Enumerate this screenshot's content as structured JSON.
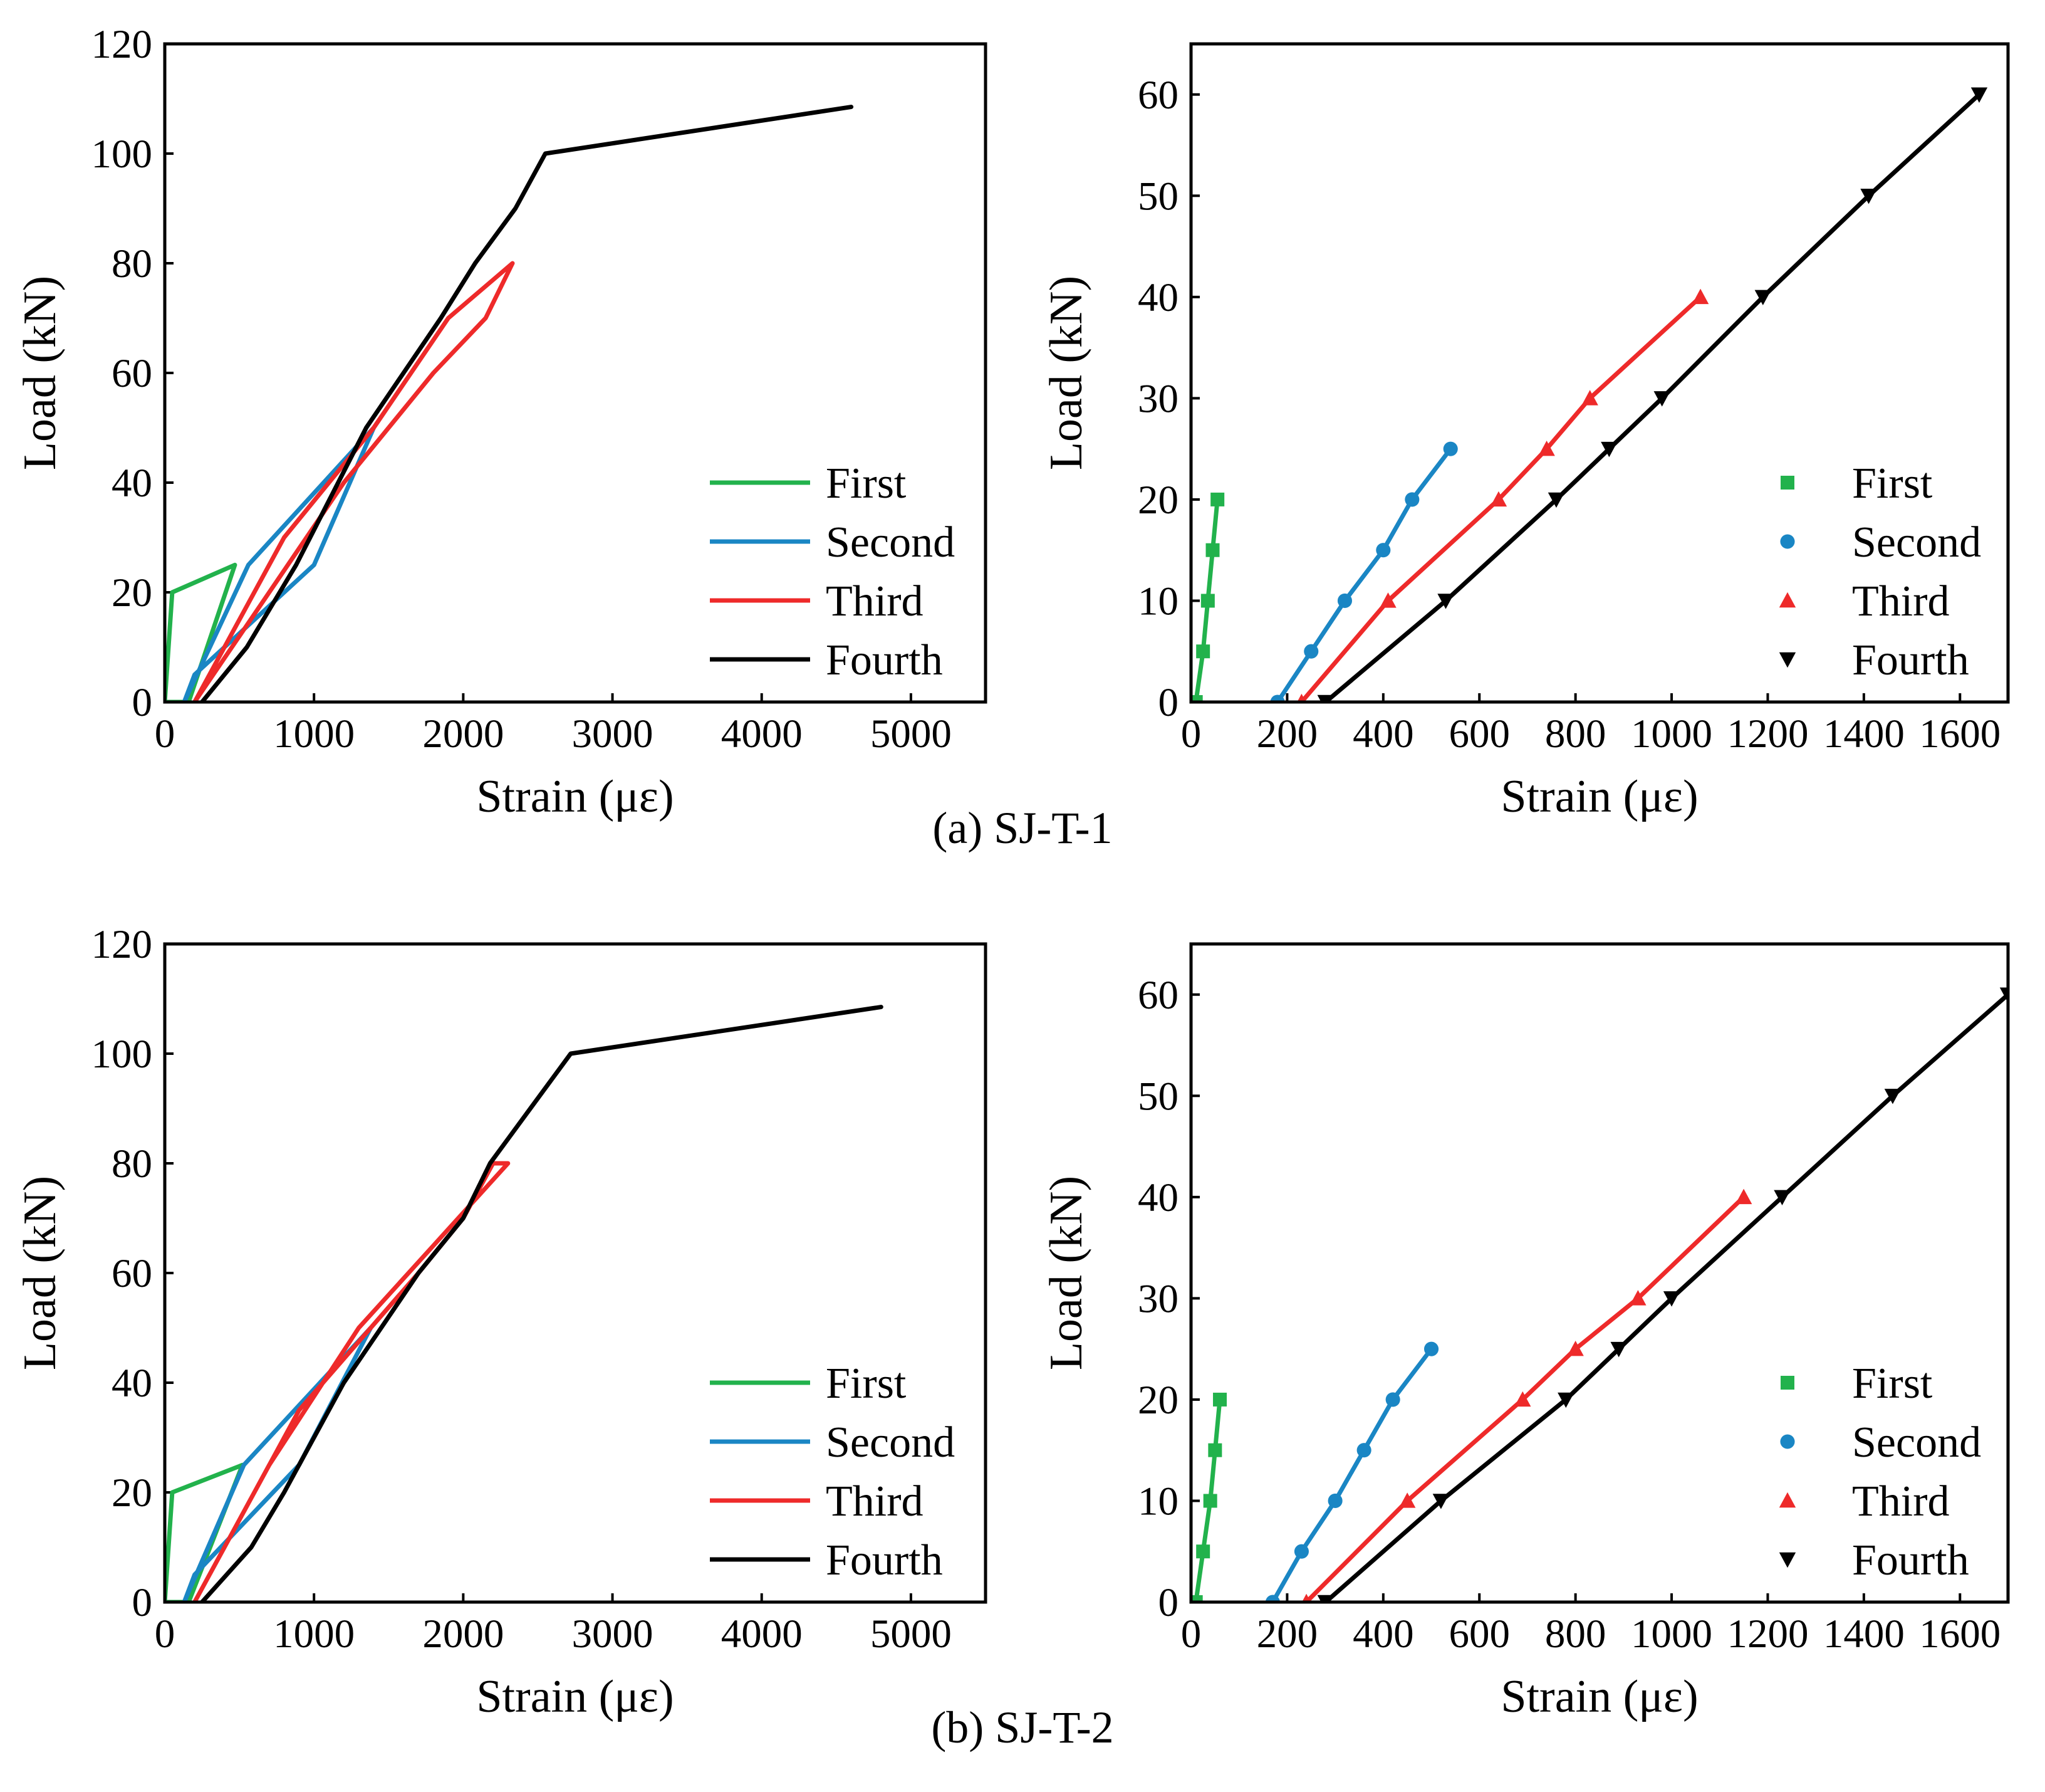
{
  "figure": {
    "caption_a": "(a) SJ-T-1",
    "caption_b": "(b) SJ-T-2"
  },
  "colors": {
    "First": "#22b24c",
    "Second": "#1a86c4",
    "Third": "#ee2a2a",
    "Fourth": "#000000"
  },
  "chart_data": [
    {
      "id": "a-left",
      "type": "line",
      "xlabel": "Strain (με)",
      "ylabel": "Load (kN)",
      "xlim": [
        0,
        5500
      ],
      "ylim": [
        0,
        120
      ],
      "xticks": [
        0,
        1000,
        2000,
        3000,
        4000,
        5000
      ],
      "yticks": [
        0,
        20,
        40,
        60,
        80,
        100,
        120
      ],
      "legend": "bottom-right",
      "series": [
        {
          "name": "First",
          "x": [
            0,
            50,
            470,
            160,
            0
          ],
          "y": [
            0,
            20,
            25,
            0,
            0
          ]
        },
        {
          "name": "Second",
          "x": [
            130,
            560,
            1400,
            1000,
            200,
            130
          ],
          "y": [
            0,
            25,
            50,
            25,
            5,
            0
          ]
        },
        {
          "name": "Third",
          "x": [
            200,
            1200,
            1800,
            2150,
            2330,
            1900,
            1400,
            800,
            200
          ],
          "y": [
            0,
            40,
            60,
            70,
            80,
            70,
            50,
            30,
            0
          ]
        },
        {
          "name": "Fourth",
          "x": [
            250,
            550,
            880,
            1350,
            1850,
            2080,
            2350,
            2550,
            4600
          ],
          "y": [
            0,
            10,
            25,
            50,
            70,
            80,
            90,
            100,
            108.5
          ]
        }
      ]
    },
    {
      "id": "a-right",
      "type": "scatter",
      "xlabel": "Strain (με)",
      "ylabel": "Load (kN)",
      "xlim": [
        0,
        1700
      ],
      "ylim": [
        0,
        65
      ],
      "xticks": [
        0,
        200,
        400,
        600,
        800,
        1000,
        1200,
        1400,
        1600
      ],
      "yticks": [
        0,
        10,
        20,
        30,
        40,
        50,
        60
      ],
      "legend": "bottom-right",
      "series": [
        {
          "name": "First",
          "marker": "square",
          "x": [
            10,
            25,
            35,
            45,
            55
          ],
          "y": [
            0,
            5,
            10,
            15,
            20
          ]
        },
        {
          "name": "Second",
          "marker": "circle",
          "x": [
            180,
            250,
            320,
            400,
            460,
            540
          ],
          "y": [
            0,
            5,
            10,
            15,
            20,
            25
          ]
        },
        {
          "name": "Third",
          "marker": "triangle-up",
          "x": [
            230,
            410,
            640,
            740,
            830,
            1060
          ],
          "y": [
            0,
            10,
            20,
            25,
            30,
            40
          ]
        },
        {
          "name": "Fourth",
          "marker": "triangle-down",
          "x": [
            280,
            530,
            760,
            870,
            980,
            1190,
            1410,
            1640
          ],
          "y": [
            0,
            10,
            20,
            25,
            30,
            40,
            50,
            60
          ]
        }
      ]
    },
    {
      "id": "b-left",
      "type": "line",
      "xlabel": "Strain (με)",
      "ylabel": "Load (kN)",
      "xlim": [
        0,
        5500
      ],
      "ylim": [
        0,
        120
      ],
      "xticks": [
        0,
        1000,
        2000,
        3000,
        4000,
        5000
      ],
      "yticks": [
        0,
        20,
        40,
        60,
        80,
        100,
        120
      ],
      "legend": "bottom-right",
      "series": [
        {
          "name": "First",
          "x": [
            0,
            50,
            520,
            160,
            0
          ],
          "y": [
            0,
            20,
            25,
            0,
            0
          ]
        },
        {
          "name": "Second",
          "x": [
            130,
            530,
            1380,
            900,
            200,
            130
          ],
          "y": [
            0,
            25,
            50,
            25,
            5,
            0
          ]
        },
        {
          "name": "Third",
          "x": [
            200,
            900,
            1700,
            2000,
            2200,
            2300,
            1800,
            1300,
            700,
            200
          ],
          "y": [
            0,
            35,
            60,
            70,
            80,
            80,
            65,
            50,
            25,
            0
          ]
        },
        {
          "name": "Fourth",
          "x": [
            250,
            580,
            800,
            1200,
            1700,
            2000,
            2180,
            2450,
            2720,
            4800
          ],
          "y": [
            0,
            10,
            20,
            40,
            60,
            70,
            80,
            90,
            100,
            108.5
          ]
        }
      ]
    },
    {
      "id": "b-right",
      "type": "scatter",
      "xlabel": "Strain (με)",
      "ylabel": "Load (kN)",
      "xlim": [
        0,
        1700
      ],
      "ylim": [
        0,
        65
      ],
      "xticks": [
        0,
        200,
        400,
        600,
        800,
        1000,
        1200,
        1400,
        1600
      ],
      "yticks": [
        0,
        10,
        20,
        30,
        40,
        50,
        60
      ],
      "legend": "bottom-right",
      "series": [
        {
          "name": "First",
          "marker": "square",
          "x": [
            10,
            25,
            40,
            50,
            60
          ],
          "y": [
            0,
            5,
            10,
            15,
            20
          ]
        },
        {
          "name": "Second",
          "marker": "circle",
          "x": [
            170,
            230,
            300,
            360,
            420,
            500
          ],
          "y": [
            0,
            5,
            10,
            15,
            20,
            25
          ]
        },
        {
          "name": "Third",
          "marker": "triangle-up",
          "x": [
            240,
            450,
            690,
            800,
            930,
            1150
          ],
          "y": [
            0,
            10,
            20,
            25,
            30,
            40
          ]
        },
        {
          "name": "Fourth",
          "marker": "triangle-down",
          "x": [
            280,
            520,
            780,
            890,
            1000,
            1230,
            1460,
            1700
          ],
          "y": [
            0,
            10,
            20,
            25,
            30,
            40,
            50,
            60
          ]
        }
      ]
    }
  ]
}
